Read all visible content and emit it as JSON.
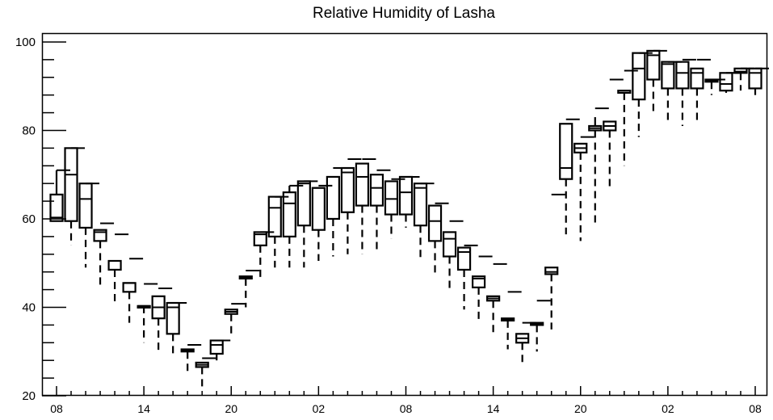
{
  "chart_data": {
    "type": "boxplot",
    "title": "Relative Humidity of Lasha",
    "xlabel": "",
    "ylabel": "",
    "ylim": [
      20,
      102
    ],
    "y_ticks": [
      20,
      40,
      60,
      80,
      100
    ],
    "x_tick_labels": [
      "08",
      "14",
      "20",
      "02",
      "08",
      "14",
      "20",
      "02",
      "08"
    ],
    "x_tick_hours": [
      0,
      6,
      12,
      18,
      24,
      30,
      36,
      42,
      48
    ],
    "grid": false,
    "series": [
      {
        "hour": 0,
        "whisker_low": 59.5,
        "q1": 59.5,
        "median": 60.3,
        "q3": 65.5,
        "whisker_high": 71.0,
        "max_line": 71.0
      },
      {
        "hour": 1,
        "whisker_low": 54.0,
        "q1": 59.5,
        "median": 70.0,
        "q3": 76.0,
        "whisker_high": 76.0,
        "max_line": 76.0
      },
      {
        "hour": 2,
        "whisker_low": 49.0,
        "q1": 58.0,
        "median": 64.5,
        "q3": 68.0,
        "whisker_high": 68.0,
        "max_line": 68.0
      },
      {
        "hour": 3,
        "whisker_low": 45.0,
        "q1": 55.0,
        "median": 57.0,
        "q3": 57.5,
        "whisker_high": 57.5,
        "max_line": 59.0
      },
      {
        "hour": 4,
        "whisker_low": 41.0,
        "q1": 48.5,
        "median": 50.5,
        "q3": 50.5,
        "whisker_high": 50.5,
        "max_line": 56.5
      },
      {
        "hour": 5,
        "whisker_low": 36.5,
        "q1": 43.5,
        "median": 45.5,
        "q3": 45.5,
        "whisker_high": 45.5,
        "max_line": 51.0
      },
      {
        "hour": 6,
        "whisker_low": 32.0,
        "q1": 40.3,
        "median": 40.3,
        "q3": 40.3,
        "whisker_high": 40.3,
        "max_line": 45.3
      },
      {
        "hour": 7,
        "whisker_low": 30.0,
        "q1": 37.5,
        "median": 40.0,
        "q3": 42.5,
        "whisker_high": 42.5,
        "max_line": 44.3
      },
      {
        "hour": 8,
        "whisker_low": 29.0,
        "q1": 34.0,
        "median": 40.0,
        "q3": 41.0,
        "whisker_high": 41.0,
        "max_line": 41.0
      },
      {
        "hour": 9,
        "whisker_low": 25.5,
        "q1": 30.0,
        "median": 30.3,
        "q3": 30.5,
        "whisker_high": 30.5,
        "max_line": 31.5
      },
      {
        "hour": 10,
        "whisker_low": 22.0,
        "q1": 26.5,
        "median": 27.0,
        "q3": 27.5,
        "whisker_high": 27.5,
        "max_line": 28.5
      },
      {
        "hour": 11,
        "whisker_low": 28.0,
        "q1": 29.5,
        "median": 31.5,
        "q3": 32.5,
        "whisker_high": 32.5,
        "max_line": 32.5
      },
      {
        "hour": 12,
        "whisker_low": 33.5,
        "q1": 38.5,
        "median": 39.0,
        "q3": 39.5,
        "whisker_high": 39.5,
        "max_line": 40.8
      },
      {
        "hour": 13,
        "whisker_low": 40.0,
        "q1": 46.5,
        "median": 46.8,
        "q3": 47.0,
        "whisker_high": 47.0,
        "max_line": 48.3
      },
      {
        "hour": 14,
        "whisker_low": 46.0,
        "q1": 54.0,
        "median": 56.5,
        "q3": 57.0,
        "whisker_high": 57.0,
        "max_line": 57.0
      },
      {
        "hour": 15,
        "whisker_low": 49.0,
        "q1": 56.0,
        "median": 62.5,
        "q3": 65.0,
        "whisker_high": 65.0,
        "max_line": 65.0
      },
      {
        "hour": 16,
        "whisker_low": 49.0,
        "q1": 56.0,
        "median": 63.5,
        "q3": 66.0,
        "whisker_high": 67.5,
        "max_line": 67.5
      },
      {
        "hour": 17,
        "whisker_low": 49.0,
        "q1": 58.5,
        "median": 68.0,
        "q3": 68.5,
        "whisker_high": 68.5,
        "max_line": 68.5
      },
      {
        "hour": 18,
        "whisker_low": 50.5,
        "q1": 57.5,
        "median": 67.0,
        "q3": 67.0,
        "whisker_high": 67.0,
        "max_line": 67.5
      },
      {
        "hour": 19,
        "whisker_low": 51.5,
        "q1": 60.0,
        "median": 60.0,
        "q3": 69.5,
        "whisker_high": 69.5,
        "max_line": 71.5
      },
      {
        "hour": 20,
        "whisker_low": 52.0,
        "q1": 61.5,
        "median": 70.5,
        "q3": 71.5,
        "whisker_high": 71.5,
        "max_line": 73.5
      },
      {
        "hour": 21,
        "whisker_low": 52.0,
        "q1": 63.0,
        "median": 69.5,
        "q3": 72.5,
        "whisker_high": 72.5,
        "max_line": 73.5
      },
      {
        "hour": 22,
        "whisker_low": 53.0,
        "q1": 63.0,
        "median": 67.0,
        "q3": 70.0,
        "whisker_high": 70.0,
        "max_line": 71.0
      },
      {
        "hour": 23,
        "whisker_low": 55.5,
        "q1": 61.0,
        "median": 64.5,
        "q3": 68.5,
        "whisker_high": 68.5,
        "max_line": 69.0
      },
      {
        "hour": 24,
        "whisker_low": 58.0,
        "q1": 61.0,
        "median": 66.0,
        "q3": 69.5,
        "whisker_high": 69.5,
        "max_line": 69.5
      },
      {
        "hour": 25,
        "whisker_low": 51.0,
        "q1": 58.5,
        "median": 67.0,
        "q3": 68.0,
        "whisker_high": 68.0,
        "max_line": 68.0
      },
      {
        "hour": 26,
        "whisker_low": 47.0,
        "q1": 55.0,
        "median": 59.5,
        "q3": 63.0,
        "whisker_high": 63.0,
        "max_line": 63.5
      },
      {
        "hour": 27,
        "whisker_low": 43.5,
        "q1": 51.5,
        "median": 55.5,
        "q3": 57.0,
        "whisker_high": 57.0,
        "max_line": 59.5
      },
      {
        "hour": 28,
        "whisker_low": 39.5,
        "q1": 48.5,
        "median": 52.5,
        "q3": 53.5,
        "whisker_high": 53.5,
        "max_line": 54.0
      },
      {
        "hour": 29,
        "whisker_low": 36.5,
        "q1": 44.5,
        "median": 46.5,
        "q3": 47.0,
        "whisker_high": 47.0,
        "max_line": 51.5
      },
      {
        "hour": 30,
        "whisker_low": 33.5,
        "q1": 41.5,
        "median": 42.0,
        "q3": 42.5,
        "whisker_high": 42.5,
        "max_line": 49.8
      },
      {
        "hour": 31,
        "whisker_low": 30.5,
        "q1": 37.0,
        "median": 37.3,
        "q3": 37.5,
        "whisker_high": 37.5,
        "max_line": 43.5
      },
      {
        "hour": 32,
        "whisker_low": 27.5,
        "q1": 32.0,
        "median": 33.0,
        "q3": 34.0,
        "whisker_high": 34.0,
        "max_line": 36.5
      },
      {
        "hour": 33,
        "whisker_low": 30.0,
        "q1": 36.0,
        "median": 36.3,
        "q3": 36.5,
        "whisker_high": 36.5,
        "max_line": 41.5
      },
      {
        "hour": 34,
        "whisker_low": 35.0,
        "q1": 47.5,
        "median": 48.0,
        "q3": 49.0,
        "whisker_high": 49.0,
        "max_line": 65.5
      },
      {
        "hour": 35,
        "whisker_low": 56.5,
        "q1": 69.0,
        "median": 71.5,
        "q3": 81.5,
        "whisker_high": 81.5,
        "max_line": 82.5
      },
      {
        "hour": 36,
        "whisker_low": 55.0,
        "q1": 75.0,
        "median": 76.0,
        "q3": 77.0,
        "whisker_high": 77.0,
        "max_line": 78.5
      },
      {
        "hour": 37,
        "whisker_low": 58.5,
        "q1": 80.0,
        "median": 80.5,
        "q3": 81.0,
        "whisker_high": 83.0,
        "max_line": 85.0
      },
      {
        "hour": 38,
        "whisker_low": 67.0,
        "q1": 80.0,
        "median": 81.0,
        "q3": 82.0,
        "whisker_high": 82.0,
        "max_line": 91.5
      },
      {
        "hour": 39,
        "whisker_low": 72.0,
        "q1": 88.5,
        "median": 88.5,
        "q3": 89.0,
        "whisker_high": 89.0,
        "max_line": 93.5
      },
      {
        "hour": 40,
        "whisker_low": 78.5,
        "q1": 87.0,
        "median": 94.0,
        "q3": 97.5,
        "whisker_high": 97.5,
        "max_line": 97.5
      },
      {
        "hour": 41,
        "whisker_low": 83.5,
        "q1": 91.5,
        "median": 97.0,
        "q3": 98.0,
        "whisker_high": 98.0,
        "max_line": 98.0
      },
      {
        "hour": 42,
        "whisker_low": 82.0,
        "q1": 89.5,
        "median": 95.0,
        "q3": 95.5,
        "whisker_high": 95.5,
        "max_line": 95.5
      },
      {
        "hour": 43,
        "whisker_low": 81.0,
        "q1": 89.5,
        "median": 93.0,
        "q3": 95.5,
        "whisker_high": 95.5,
        "max_line": 96.0
      },
      {
        "hour": 44,
        "whisker_low": 82.0,
        "q1": 89.5,
        "median": 93.0,
        "q3": 94.0,
        "whisker_high": 94.0,
        "max_line": 96.0
      },
      {
        "hour": 45,
        "whisker_low": 88.0,
        "q1": 91.0,
        "median": 91.3,
        "q3": 91.5,
        "whisker_high": 91.5,
        "max_line": 91.5
      },
      {
        "hour": 46,
        "whisker_low": 88.5,
        "q1": 89.0,
        "median": 90.5,
        "q3": 93.0,
        "whisker_high": 93.0,
        "max_line": 93.0
      },
      {
        "hour": 47,
        "whisker_low": 89.0,
        "q1": 93.0,
        "median": 93.3,
        "q3": 94.0,
        "whisker_high": 94.0,
        "max_line": 94.0
      },
      {
        "hour": 48,
        "whisker_low": 88.0,
        "q1": 89.5,
        "median": 93.0,
        "q3": 94.0,
        "whisker_high": 94.0,
        "max_line": 94.0
      }
    ]
  }
}
